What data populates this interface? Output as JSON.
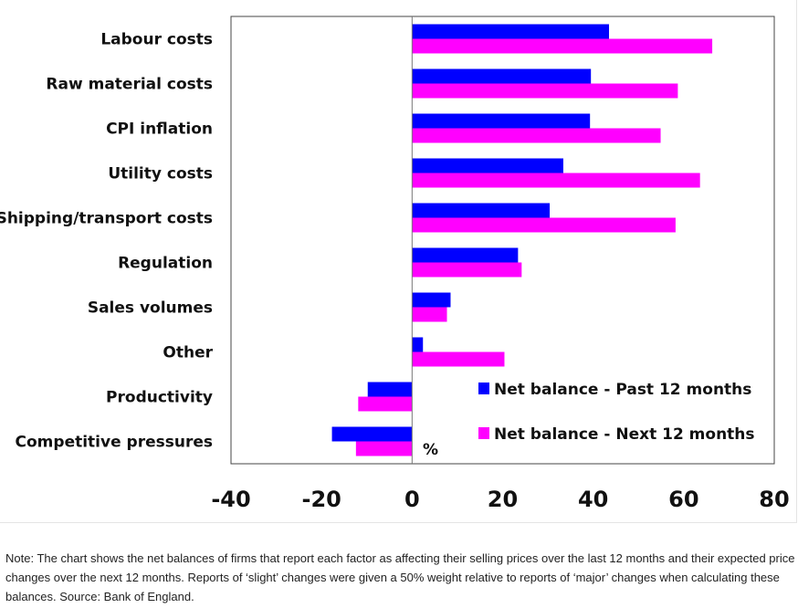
{
  "chart_data": {
    "type": "bar",
    "orientation": "horizontal",
    "categories": [
      "Labour costs",
      "Raw material costs",
      "CPI inflation",
      "Utility costs",
      "Shipping/transport costs",
      "Regulation",
      "Sales volumes",
      "Other",
      "Productivity",
      "Competitive pressures"
    ],
    "series": [
      {
        "name": "Net balance - Past 12 months",
        "color": "#0000ff",
        "values": [
          43.5,
          39.5,
          39.3,
          33.4,
          30.4,
          23.4,
          8.5,
          2.4,
          -9.8,
          -17.7
        ]
      },
      {
        "name": "Net balance - Next 12 months",
        "color": "#ff00ff",
        "values": [
          66.3,
          58.7,
          54.9,
          63.6,
          58.2,
          24.2,
          7.7,
          20.4,
          -11.9,
          -12.4
        ]
      }
    ],
    "xlim": [
      -40,
      80
    ],
    "xticks": [
      -40,
      -20,
      0,
      20,
      40,
      60,
      80
    ],
    "unit_label": "%",
    "grid": false,
    "legend": "bottom-right inside plot"
  },
  "note": "Note: The chart shows the net balances of firms that report each factor as affecting their selling prices over the last 12 months and their expected price changes over the next 12 months. Reports of ‘slight’ changes were given a 50% weight relative to reports of ‘major’ changes when calculating these balances. Source: Bank of England."
}
